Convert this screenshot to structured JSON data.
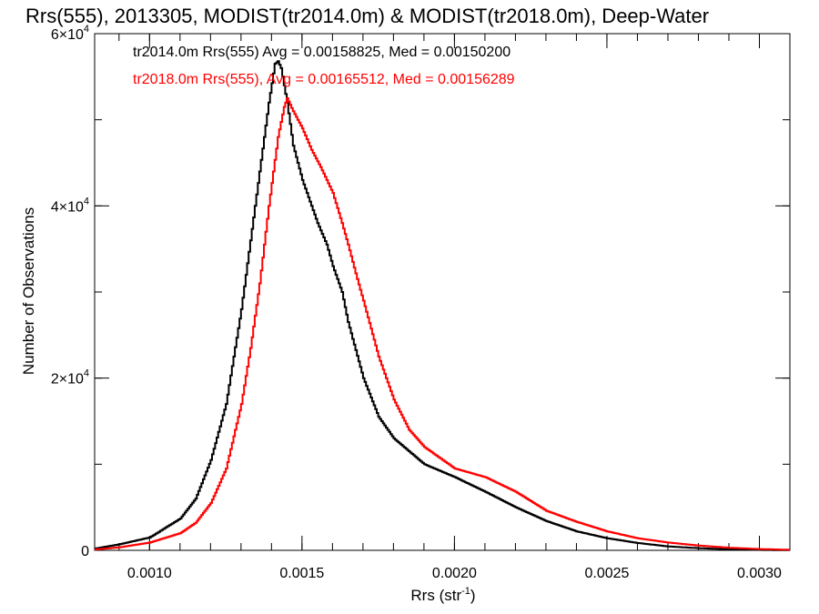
{
  "chart_data": {
    "type": "line",
    "title": "Rrs(555), 2013305, MODIST(tr2014.0m) & MODIST(tr2018.0m), Deep-Water",
    "xlabel": "Rrs (str",
    "xlabel_sup": "-1",
    "xlabel_tail": ")",
    "ylabel": "Number of Observations",
    "xlim": [
      0.00082,
      0.0031
    ],
    "ylim": [
      0,
      60000
    ],
    "xticks": [
      {
        "value": 0.001,
        "label": "0.0010"
      },
      {
        "value": 0.0015,
        "label": "0.0015"
      },
      {
        "value": 0.002,
        "label": "0.0020"
      },
      {
        "value": 0.0025,
        "label": "0.0025"
      },
      {
        "value": 0.003,
        "label": "0.0030"
      }
    ],
    "yticks": [
      {
        "value": 0,
        "base": "0",
        "exp": ""
      },
      {
        "value": 20000,
        "base": "2×10",
        "exp": "4"
      },
      {
        "value": 40000,
        "base": "4×10",
        "exp": "4"
      },
      {
        "value": 60000,
        "base": "6×10",
        "exp": "4"
      }
    ],
    "y_minor_step": 10000,
    "x_minor_step": 0.0001,
    "grid": false,
    "legend_position": "top-left",
    "series": [
      {
        "name": "tr2014.0m Rrs(555) Avg = 0.00158825, Med = 0.00150200",
        "color": "#000000",
        "x": [
          0.00082,
          0.0009,
          0.001,
          0.0011,
          0.00115,
          0.0012,
          0.00125,
          0.0013,
          0.00133,
          0.00136,
          0.00139,
          0.00141,
          0.00142,
          0.00143,
          0.00145,
          0.00147,
          0.0015,
          0.00153,
          0.00155,
          0.00158,
          0.0016,
          0.00163,
          0.00165,
          0.0017,
          0.00175,
          0.0018,
          0.0019,
          0.002,
          0.0021,
          0.0022,
          0.0023,
          0.0024,
          0.0025,
          0.0026,
          0.0027,
          0.0028,
          0.0029,
          0.003,
          0.0031
        ],
        "y": [
          200,
          700,
          1500,
          3700,
          6000,
          10500,
          17000,
          28000,
          36000,
          44000,
          52000,
          56500,
          56800,
          56000,
          52000,
          47000,
          43000,
          40000,
          38000,
          35500,
          33000,
          30000,
          26500,
          20000,
          15500,
          13000,
          10000,
          8500,
          6800,
          5000,
          3400,
          2200,
          1400,
          850,
          450,
          250,
          120,
          50,
          20
        ]
      },
      {
        "name": "tr2018.0m Rrs(555), Avg = 0.00165512, Med = 0.00156289",
        "color": "#ff0000",
        "x": [
          0.00082,
          0.0009,
          0.001,
          0.0011,
          0.00115,
          0.0012,
          0.00125,
          0.0013,
          0.00133,
          0.00136,
          0.00139,
          0.00142,
          0.00144,
          0.00145,
          0.00147,
          0.0015,
          0.00153,
          0.00156,
          0.0016,
          0.00163,
          0.00165,
          0.00168,
          0.0017,
          0.00175,
          0.0018,
          0.00185,
          0.0019,
          0.002,
          0.0021,
          0.0022,
          0.0023,
          0.0024,
          0.0025,
          0.0026,
          0.0027,
          0.0028,
          0.0029,
          0.003,
          0.0031
        ],
        "y": [
          100,
          350,
          900,
          2000,
          3200,
          5500,
          9500,
          17000,
          23500,
          31000,
          40000,
          48000,
          51500,
          52500,
          51000,
          49000,
          46500,
          44500,
          41500,
          38000,
          35500,
          31500,
          29000,
          22500,
          17500,
          14000,
          12000,
          9500,
          8500,
          6800,
          4600,
          3300,
          2200,
          1400,
          900,
          550,
          300,
          150,
          60
        ]
      }
    ]
  }
}
